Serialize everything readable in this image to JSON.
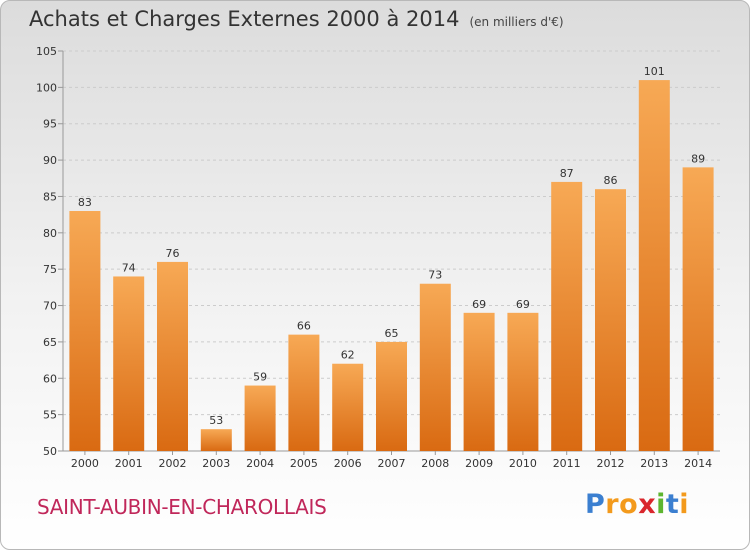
{
  "header": {
    "title": "Achats et Charges Externes 2000 à 2014",
    "unit": "(en milliers d'€)"
  },
  "footer": {
    "commune": "SAINT-AUBIN-EN-CHAROLLAIS"
  },
  "logo": {
    "letters": [
      "P",
      "r",
      "o",
      "x",
      "i",
      "t",
      "i"
    ],
    "colors": [
      "#3b7fd0",
      "#f39a1c",
      "#f39a1c",
      "#d9262c",
      "#5db52f",
      "#3b7fd0",
      "#f39a1c"
    ]
  },
  "colors": {
    "bar_light": "#f7a955",
    "bar_dark": "#d96a12",
    "grid": "#cccccc",
    "axis": "#999999",
    "label": "#333333"
  },
  "chart_data": {
    "type": "bar",
    "title": "Achats et Charges Externes 2000 à 2014",
    "categories": [
      "2000",
      "2001",
      "2002",
      "2003",
      "2004",
      "2005",
      "2006",
      "2007",
      "2008",
      "2009",
      "2010",
      "2011",
      "2012",
      "2013",
      "2014"
    ],
    "values": [
      83,
      74,
      76,
      53,
      59,
      66,
      62,
      65,
      73,
      69,
      69,
      87,
      86,
      101,
      89
    ],
    "ylim": [
      50,
      105
    ],
    "yticks": [
      50,
      55,
      60,
      65,
      70,
      75,
      80,
      85,
      90,
      95,
      100,
      105
    ],
    "grid": true,
    "data_labels": true
  }
}
